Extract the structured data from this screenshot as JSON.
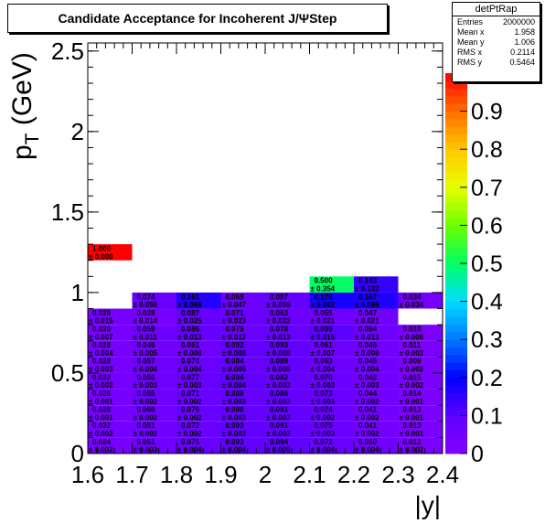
{
  "title": "Candidate Acceptance for Incoherent J/ΨStep",
  "stats": {
    "name": "detPtRap",
    "rows": [
      {
        "label": "Entries",
        "value": "2000000"
      },
      {
        "label": "Mean x",
        "value": "1.958"
      },
      {
        "label": "Mean y",
        "value": "1.006"
      },
      {
        "label": "RMS x",
        "value": "0.2114"
      },
      {
        "label": "RMS y",
        "value": "0.5464"
      }
    ]
  },
  "chart_data": {
    "type": "heatmap",
    "xlabel": "|y|",
    "ylabel": "p_T (GeV)",
    "xlim": [
      1.6,
      2.4
    ],
    "ylim": [
      0,
      2.55
    ],
    "x_ticks": [
      "1.6",
      "1.7",
      "1.8",
      "1.9",
      "2",
      "2.1",
      "2.2",
      "2.3",
      "2.4"
    ],
    "y_ticks": [
      "0",
      "0.5",
      "1",
      "1.5",
      "2",
      "2.5"
    ],
    "z_ticks": [
      "0",
      "0.1",
      "0.2",
      "0.3",
      "0.4",
      "0.5",
      "0.6",
      "0.7",
      "0.8",
      "0.9"
    ],
    "zlim": [
      0,
      1
    ],
    "x_bin_edges": [
      1.6,
      1.7,
      1.8,
      1.9,
      2.0,
      2.1,
      2.2,
      2.3,
      2.4
    ],
    "y_bin_edges": [
      0,
      0.1,
      0.2,
      0.3,
      0.4,
      0.5,
      0.6,
      0.7,
      0.8,
      0.9,
      1.0,
      1.1,
      1.2,
      1.3,
      1.4,
      1.5,
      1.6,
      1.7,
      1.8
    ],
    "cells": [
      {
        "ix": 0,
        "iy": 0,
        "value": "0.024",
        "error": "± 0.002"
      },
      {
        "ix": 1,
        "iy": 0,
        "value": "0.051",
        "error": "± 0.003"
      },
      {
        "ix": 2,
        "iy": 0,
        "value": "0.075",
        "error": "± 0.004"
      },
      {
        "ix": 3,
        "iy": 0,
        "value": "0.093",
        "error": "± 0.004"
      },
      {
        "ix": 4,
        "iy": 0,
        "value": "0.094",
        "error": "± 0.005"
      },
      {
        "ix": 5,
        "iy": 0,
        "value": "0.072",
        "error": "± 0.004"
      },
      {
        "ix": 6,
        "iy": 0,
        "value": "0.050",
        "error": "± 0.004"
      },
      {
        "ix": 7,
        "iy": 0,
        "value": "0.012",
        "error": "± 0.002"
      },
      {
        "ix": 0,
        "iy": 1,
        "value": "0.032",
        "error": "± 0.002"
      },
      {
        "ix": 1,
        "iy": 1,
        "value": "0.051",
        "error": "± 0.002"
      },
      {
        "ix": 2,
        "iy": 1,
        "value": "0.072",
        "error": "± 0.002"
      },
      {
        "ix": 3,
        "iy": 1,
        "value": "0.093",
        "error": "± 0.003"
      },
      {
        "ix": 4,
        "iy": 1,
        "value": "0.091",
        "error": "± 0.003"
      },
      {
        "ix": 5,
        "iy": 1,
        "value": "0.075",
        "error": "± 0.003"
      },
      {
        "ix": 6,
        "iy": 1,
        "value": "0.041",
        "error": "± 0.002"
      },
      {
        "ix": 7,
        "iy": 1,
        "value": "0.013",
        "error": "± 0.001"
      },
      {
        "ix": 0,
        "iy": 2,
        "value": "0.028",
        "error": "± 0.001"
      },
      {
        "ix": 1,
        "iy": 2,
        "value": "0.050",
        "error": "± 0.002"
      },
      {
        "ix": 2,
        "iy": 2,
        "value": "0.076",
        "error": "± 0.002"
      },
      {
        "ix": 3,
        "iy": 2,
        "value": "0.088",
        "error": "± 0.003"
      },
      {
        "ix": 4,
        "iy": 2,
        "value": "0.091",
        "error": "± 0.003"
      },
      {
        "ix": 5,
        "iy": 2,
        "value": "0.074",
        "error": "± 0.002"
      },
      {
        "ix": 6,
        "iy": 2,
        "value": "0.041",
        "error": "± 0.002"
      },
      {
        "ix": 7,
        "iy": 2,
        "value": "0.013",
        "error": "± 0.001"
      },
      {
        "ix": 0,
        "iy": 3,
        "value": "0.026",
        "error": "± 0.001"
      },
      {
        "ix": 1,
        "iy": 3,
        "value": "0.055",
        "error": "± 0.002"
      },
      {
        "ix": 2,
        "iy": 3,
        "value": "0.071",
        "error": "± 0.002"
      },
      {
        "ix": 3,
        "iy": 3,
        "value": "0.088",
        "error": "± 0.003"
      },
      {
        "ix": 4,
        "iy": 3,
        "value": "0.086",
        "error": "± 0.003"
      },
      {
        "ix": 5,
        "iy": 3,
        "value": "0.073",
        "error": "± 0.003"
      },
      {
        "ix": 6,
        "iy": 3,
        "value": "0.044",
        "error": "± 0.002"
      },
      {
        "ix": 7,
        "iy": 3,
        "value": "0.014",
        "error": "± 0.001"
      },
      {
        "ix": 0,
        "iy": 4,
        "value": "0.032",
        "error": "± 0.002"
      },
      {
        "ix": 1,
        "iy": 4,
        "value": "0.056",
        "error": "± 0.003"
      },
      {
        "ix": 2,
        "iy": 4,
        "value": "0.077",
        "error": "± 0.003"
      },
      {
        "ix": 3,
        "iy": 4,
        "value": "0.094",
        "error": "± 0.004"
      },
      {
        "ix": 4,
        "iy": 4,
        "value": "0.082",
        "error": "± 0.003"
      },
      {
        "ix": 5,
        "iy": 4,
        "value": "0.070",
        "error": "± 0.003"
      },
      {
        "ix": 6,
        "iy": 4,
        "value": "0.042",
        "error": "± 0.003"
      },
      {
        "ix": 7,
        "iy": 4,
        "value": "0.015",
        "error": "± 0.002"
      },
      {
        "ix": 0,
        "iy": 5,
        "value": "0.028",
        "error": "± 0.003"
      },
      {
        "ix": 1,
        "iy": 5,
        "value": "0.057",
        "error": "± 0.004"
      },
      {
        "ix": 2,
        "iy": 5,
        "value": "0.074",
        "error": "± 0.004"
      },
      {
        "ix": 3,
        "iy": 5,
        "value": "0.084",
        "error": "± 0.005"
      },
      {
        "ix": 4,
        "iy": 5,
        "value": "0.089",
        "error": "± 0.005"
      },
      {
        "ix": 5,
        "iy": 5,
        "value": "0.063",
        "error": "± 0.004"
      },
      {
        "ix": 6,
        "iy": 5,
        "value": "0.045",
        "error": "± 0.004"
      },
      {
        "ix": 7,
        "iy": 5,
        "value": "0.009",
        "error": "± 0.002"
      },
      {
        "ix": 0,
        "iy": 6,
        "value": "0.028",
        "error": "± 0.004"
      },
      {
        "ix": 1,
        "iy": 6,
        "value": "0.046",
        "error": "± 0.005"
      },
      {
        "ix": 2,
        "iy": 6,
        "value": "0.061",
        "error": "± 0.006"
      },
      {
        "ix": 3,
        "iy": 6,
        "value": "0.092",
        "error": "± 0.008"
      },
      {
        "ix": 4,
        "iy": 6,
        "value": "0.093",
        "error": "± 0.008"
      },
      {
        "ix": 5,
        "iy": 6,
        "value": "0.061",
        "error": "± 0.007"
      },
      {
        "ix": 6,
        "iy": 6,
        "value": "0.046",
        "error": "± 0.006"
      },
      {
        "ix": 7,
        "iy": 6,
        "value": "0.011",
        "error": "± 0.003"
      },
      {
        "ix": 0,
        "iy": 7,
        "value": "0.030",
        "error": "± 0.007"
      },
      {
        "ix": 1,
        "iy": 7,
        "value": "0.059",
        "error": "± 0.011"
      },
      {
        "ix": 2,
        "iy": 7,
        "value": "0.086",
        "error": "± 0.013"
      },
      {
        "ix": 3,
        "iy": 7,
        "value": "0.075",
        "error": "± 0.012"
      },
      {
        "ix": 4,
        "iy": 7,
        "value": "0.078",
        "error": "± 0.013"
      },
      {
        "ix": 5,
        "iy": 7,
        "value": "0.099",
        "error": "± 0.015"
      },
      {
        "ix": 6,
        "iy": 7,
        "value": "0.054",
        "error": "± 0.013"
      },
      {
        "ix": 7,
        "iy": 7,
        "value": "0.010",
        "error": "± 0.006"
      },
      {
        "ix": 0,
        "iy": 8,
        "value": "0.036",
        "error": "± 0.015"
      },
      {
        "ix": 1,
        "iy": 8,
        "value": "0.028",
        "error": "± 0.014"
      },
      {
        "ix": 2,
        "iy": 8,
        "value": "0.087",
        "error": "± 0.025"
      },
      {
        "ix": 3,
        "iy": 8,
        "value": "0.071",
        "error": "± 0.023"
      },
      {
        "ix": 4,
        "iy": 8,
        "value": "0.063",
        "error": "± 0.022"
      },
      {
        "ix": 5,
        "iy": 8,
        "value": "0.055",
        "error": "± 0.021"
      },
      {
        "ix": 6,
        "iy": 8,
        "value": "0.047",
        "error": "± 0.021"
      },
      {
        "ix": 1,
        "iy": 9,
        "value": "0.074",
        "error": "± 0.050"
      },
      {
        "ix": 2,
        "iy": 9,
        "value": "0.161",
        "error": "± 0.066"
      },
      {
        "ix": 3,
        "iy": 9,
        "value": "0.069",
        "error": "± 0.047"
      },
      {
        "ix": 4,
        "iy": 9,
        "value": "0.087",
        "error": "± 0.059"
      },
      {
        "ix": 5,
        "iy": 9,
        "value": "0.176",
        "error": "± 0.092"
      },
      {
        "ix": 6,
        "iy": 9,
        "value": "0.167",
        "error": "± 0.088"
      },
      {
        "ix": 7,
        "iy": 9,
        "value": "0.034",
        "error": "± 0.034"
      },
      {
        "ix": 5,
        "iy": 10,
        "value": "0.500",
        "error": "± 0.354"
      },
      {
        "ix": 6,
        "iy": 10,
        "value": "0.143",
        "error": "± 0.132"
      },
      {
        "ix": 0,
        "iy": 12,
        "value": "1.000",
        "error": "± 0.000"
      }
    ]
  }
}
